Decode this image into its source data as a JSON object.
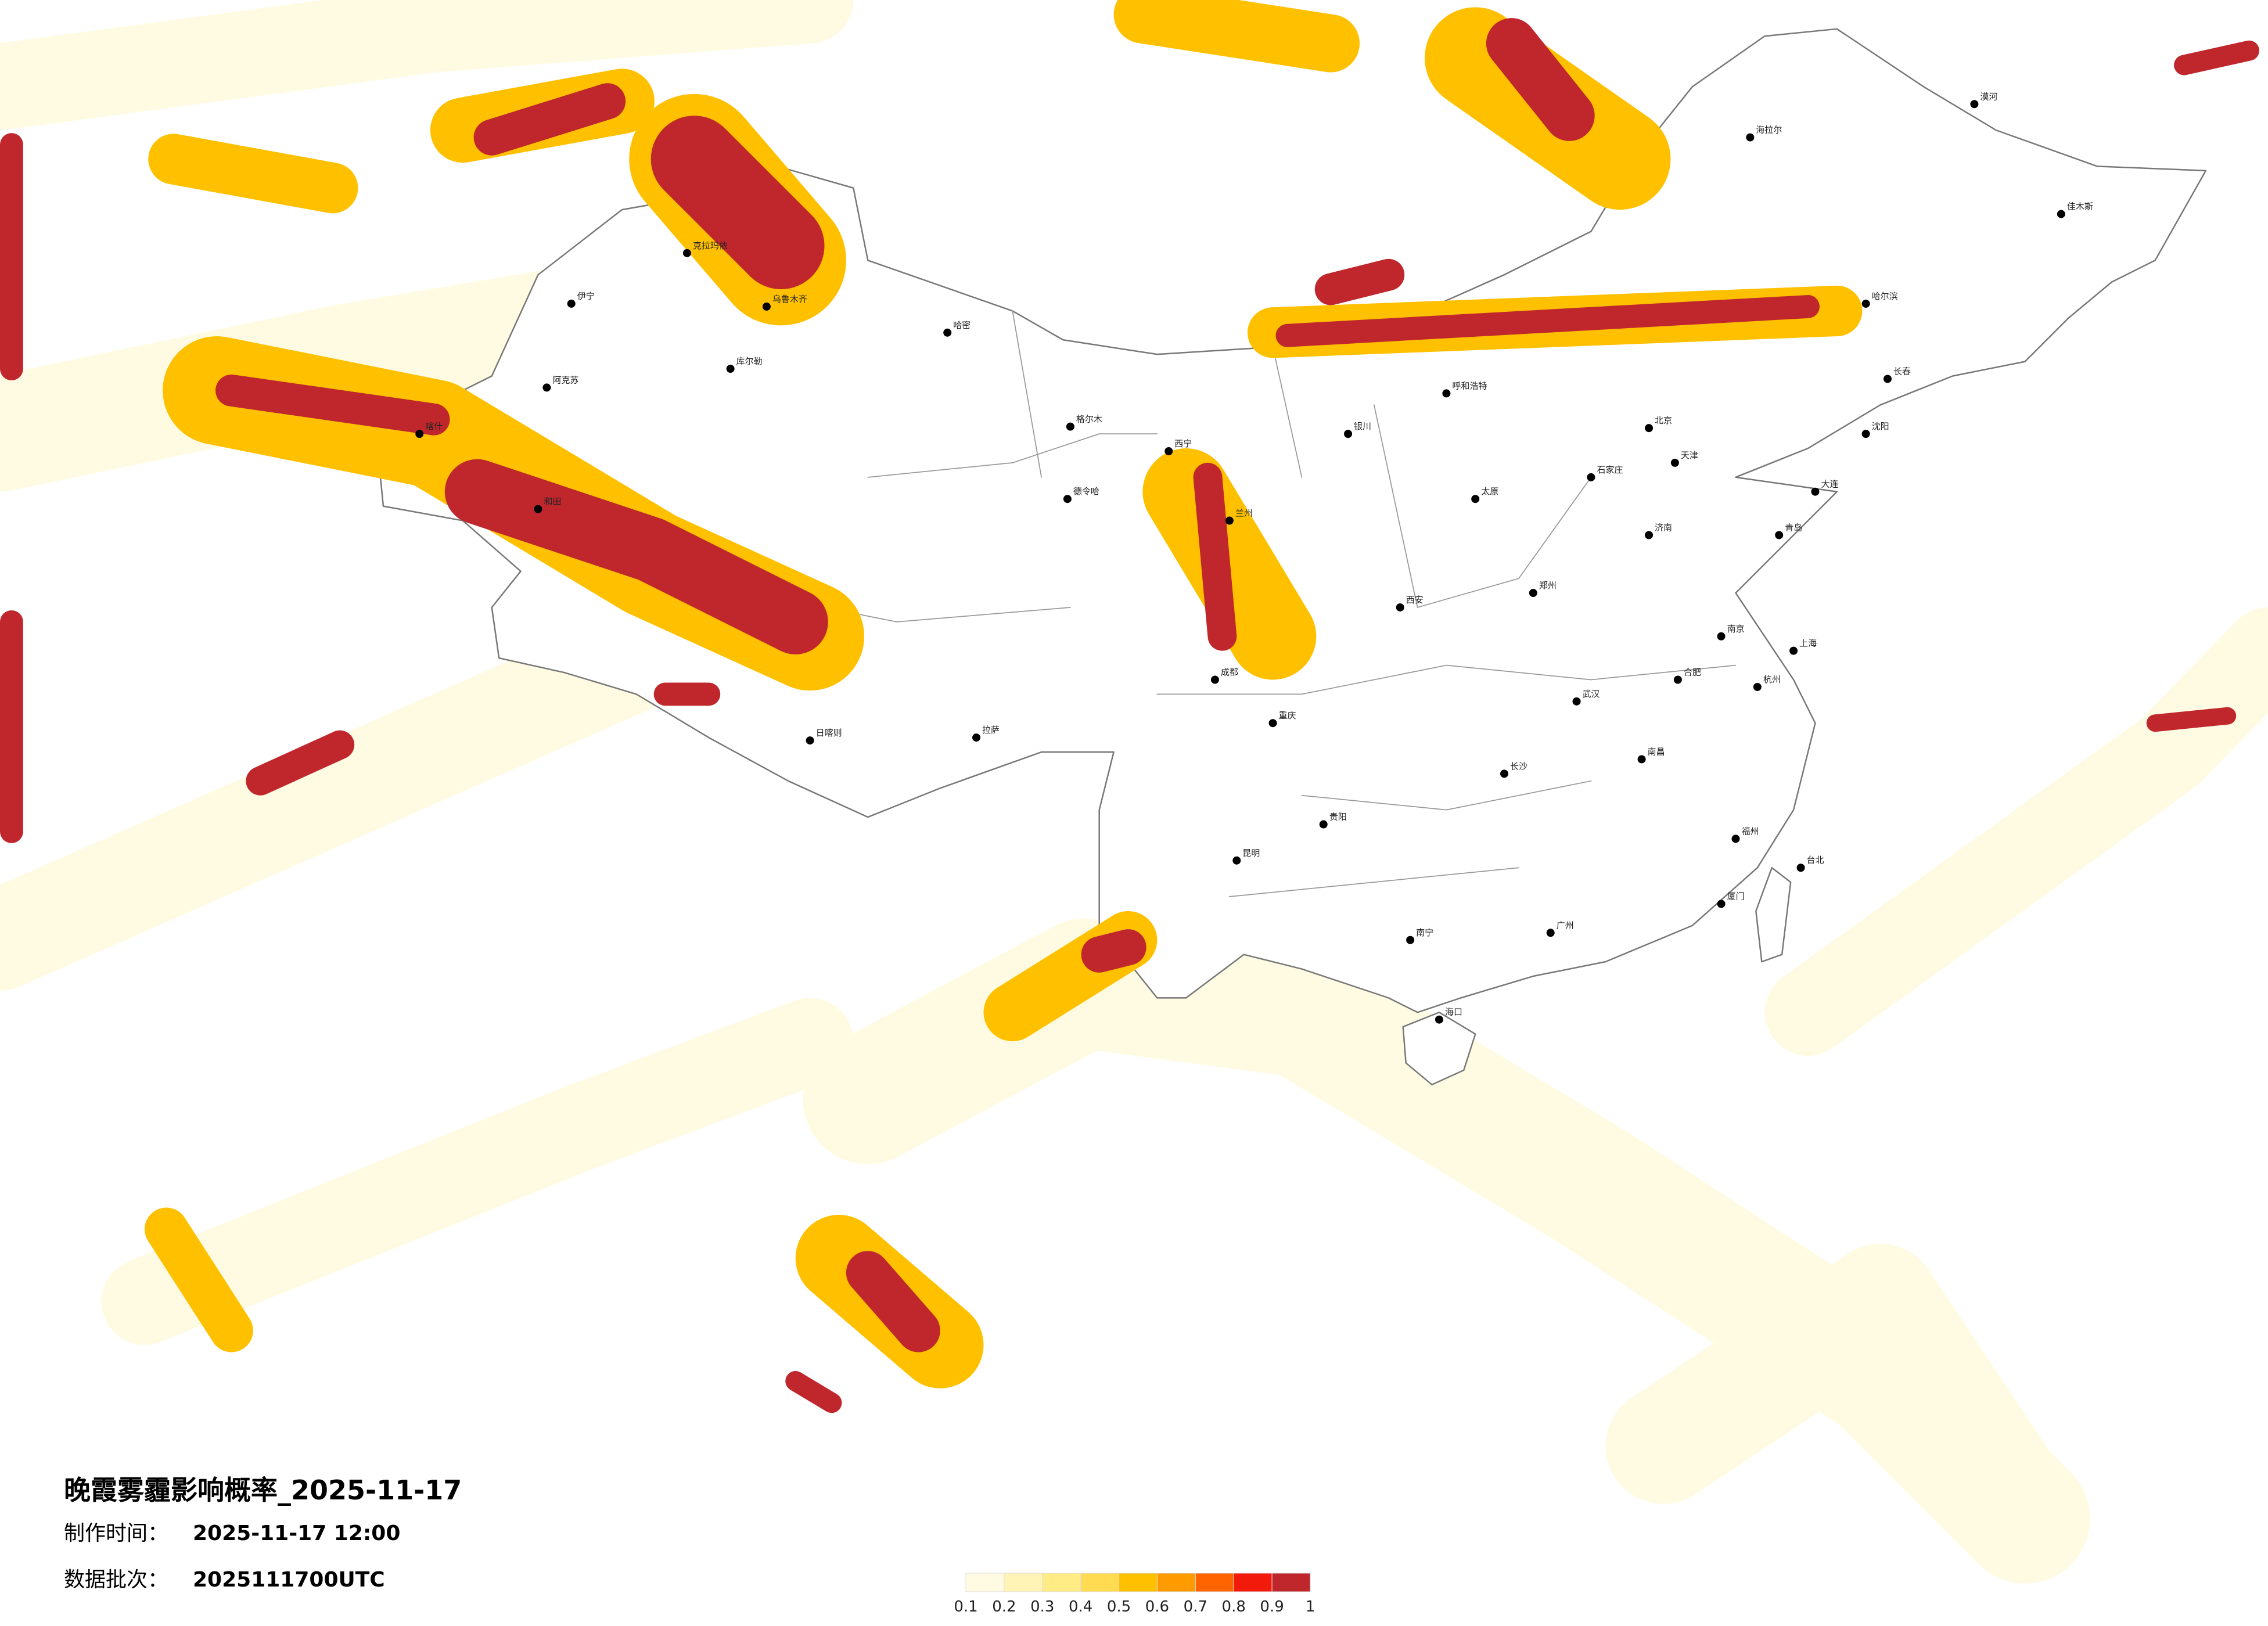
{
  "header": {
    "title": "晚霞雾霾影响概率_2025-11-17",
    "made_label": "制作时间：",
    "made_time": "2025-11-17 12:00",
    "batch_label": "数据批次：",
    "batch": "2025111700UTC"
  },
  "legend": {
    "ticks": [
      0.1,
      0.2,
      0.3,
      0.4,
      0.5,
      0.6,
      0.7,
      0.8,
      0.9,
      1
    ],
    "colors": [
      "#fffbe3",
      "#fff4b5",
      "#ffec85",
      "#ffdb52",
      "#ffc000",
      "#ff9a00",
      "#ff6400",
      "#f21a0a",
      "#c0272d"
    ]
  },
  "cities": [
    "伊宁",
    "克拉玛依",
    "乌鲁木齐",
    "哈密",
    "阿克苏",
    "库尔勒",
    "喀什",
    "和田",
    "格尔木",
    "德令哈",
    "西宁",
    "兰州",
    "银川",
    "呼和浩特",
    "北京",
    "天津",
    "石家庄",
    "太原",
    "济南",
    "郑州",
    "西安",
    "成都",
    "重庆",
    "贵阳",
    "昆明",
    "南宁",
    "广州",
    "长沙",
    "武汉",
    "南昌",
    "杭州",
    "上海",
    "南京",
    "合肥",
    "福州",
    "台北",
    "海口",
    "拉萨",
    "日喀则",
    "哈尔滨",
    "长春",
    "沈阳",
    "大连",
    "青岛",
    "厦门",
    "漠河",
    "佳木斯",
    "海拉尔"
  ]
}
